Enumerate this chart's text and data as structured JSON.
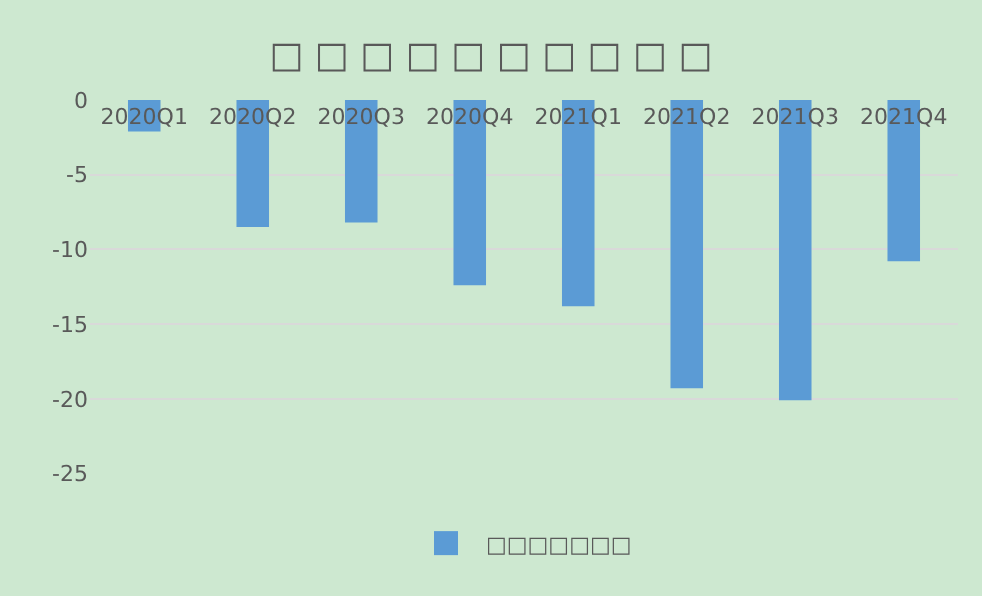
{
  "chart_data": {
    "type": "bar",
    "title": "□ □ □ □ □ □ □ □ □ □",
    "categories": [
      "2020Q1",
      "2020Q2",
      "2020Q3",
      "2020Q4",
      "2021Q1",
      "2021Q2",
      "2021Q3",
      "2021Q4"
    ],
    "series": [
      {
        "name": "□□□□□□□",
        "color": "#5b9bd5",
        "values": [
          -2.1,
          -8.5,
          -8.2,
          -12.4,
          -13.8,
          -19.3,
          -20.1,
          -10.8
        ]
      }
    ],
    "ylim": [
      -25,
      0
    ],
    "yticks": [
      0,
      -5,
      -10,
      -15,
      -20,
      -25
    ],
    "grid": "y",
    "legend": "bottom"
  }
}
